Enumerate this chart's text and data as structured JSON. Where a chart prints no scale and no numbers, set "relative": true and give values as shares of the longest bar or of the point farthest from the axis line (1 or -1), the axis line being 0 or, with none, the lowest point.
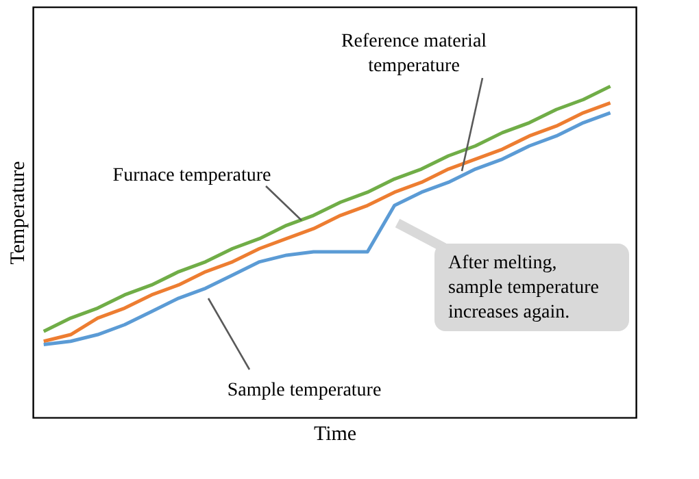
{
  "chart_data": {
    "type": "line",
    "relative": true,
    "xlabel": "Time",
    "ylabel": "Temperature",
    "grid": false,
    "legend": false,
    "marker": "none",
    "line_style": "solid",
    "categories": [
      null,
      null,
      null,
      null,
      null,
      null,
      null,
      null,
      null,
      null,
      null,
      null,
      null,
      null,
      null,
      null,
      null,
      null,
      null,
      null,
      null,
      null
    ],
    "series": [
      {
        "name": "Furnace temperature",
        "color": "#70ad47",
        "values": [
          0.26,
          0.3,
          0.33,
          0.37,
          0.4,
          0.44,
          0.47,
          0.51,
          0.54,
          0.58,
          0.61,
          0.65,
          0.68,
          0.72,
          0.75,
          0.79,
          0.82,
          0.86,
          0.89,
          0.93,
          0.96,
          1.0
        ]
      },
      {
        "name": "Reference material temperature",
        "color": "#ed7d31",
        "values": [
          0.23,
          0.25,
          0.3,
          0.33,
          0.37,
          0.4,
          0.44,
          0.47,
          0.51,
          0.54,
          0.57,
          0.61,
          0.64,
          0.68,
          0.71,
          0.75,
          0.78,
          0.81,
          0.85,
          0.88,
          0.92,
          0.95
        ]
      },
      {
        "name": "Sample temperature",
        "color": "#5b9bd5",
        "values": [
          0.22,
          0.23,
          0.25,
          0.28,
          0.32,
          0.36,
          0.39,
          0.43,
          0.47,
          0.49,
          0.5,
          0.5,
          0.5,
          0.64,
          0.68,
          0.71,
          0.75,
          0.78,
          0.82,
          0.85,
          0.89,
          0.92
        ]
      }
    ],
    "annotations": [
      "After melting, sample temperature increases again."
    ]
  }
}
